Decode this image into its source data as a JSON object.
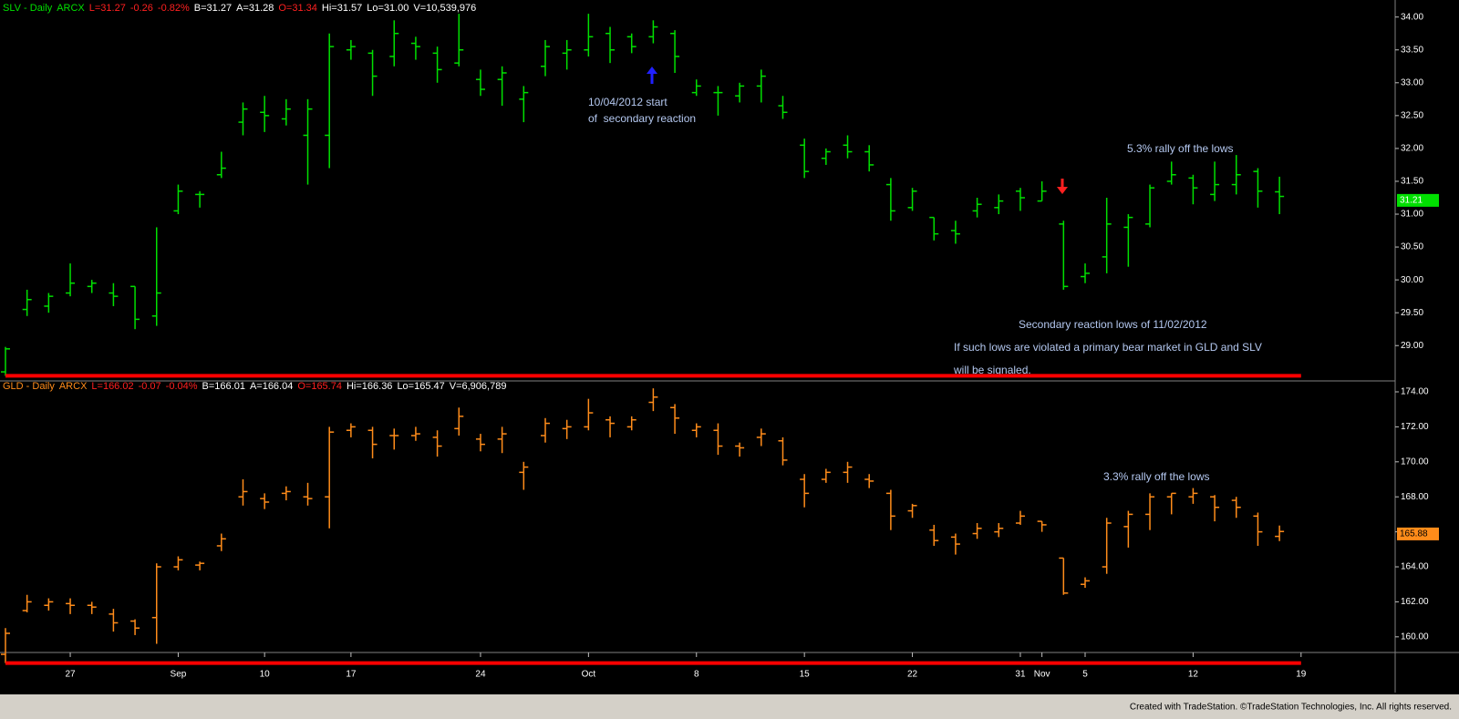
{
  "chart_data": [
    {
      "type": "ohlc",
      "color": "#00e000",
      "header": [
        {
          "text": "SLV - Daily",
          "color": "#00e000"
        },
        {
          "text": "ARCX",
          "color": "#00e000"
        },
        {
          "text": "L=31.27",
          "color": "#ff2020"
        },
        {
          "text": "-0.26",
          "color": "#ff2020"
        },
        {
          "text": "-0.82%",
          "color": "#ff2020"
        },
        {
          "text": "B=31.27",
          "color": "#ffffff"
        },
        {
          "text": "A=31.28",
          "color": "#ffffff"
        },
        {
          "text": "O=31.34",
          "color": "#ff2020"
        },
        {
          "text": "Hi=31.57",
          "color": "#ffffff"
        },
        {
          "text": "Lo=31.00",
          "color": "#ffffff"
        },
        {
          "text": "V=10,539,976",
          "color": "#ffffff"
        }
      ],
      "ylim": [
        28.49,
        34.19
      ],
      "yticks": [
        {
          "value": 29,
          "label": "29.00"
        },
        {
          "value": 29.5,
          "label": "29.50"
        },
        {
          "value": 30,
          "label": "30.00"
        },
        {
          "value": 30.5,
          "label": "30.50"
        },
        {
          "value": 31,
          "label": "31.00"
        },
        {
          "value": 31.5,
          "label": "31.50"
        },
        {
          "value": 32,
          "label": "32.00"
        },
        {
          "value": 32.5,
          "label": "32.50"
        },
        {
          "value": 33,
          "label": "33.00"
        },
        {
          "value": 33.5,
          "label": "33.50"
        },
        {
          "value": 34,
          "label": "34.00"
        }
      ],
      "price_tag": 31.21,
      "open": [
        28.6,
        29.55,
        29.6,
        29.8,
        29.9,
        29.8,
        29.9,
        29.45,
        31.05,
        31.3,
        31.6,
        32.4,
        32.55,
        32.45,
        32.2,
        32.2,
        33.5,
        33.45,
        33.4,
        33.6,
        33.45,
        33.3,
        33.05,
        33.05,
        32.75,
        33.25,
        33.45,
        33.5,
        33.75,
        33.7,
        33.7,
        33.75,
        32.85,
        32.85,
        32.8,
        32.95,
        32.65,
        32.05,
        31.85,
        32.05,
        31.95,
        31.45,
        31.1,
        30.95,
        30.75,
        31.05,
        31.1,
        31.35,
        31.2,
        30.85,
        30.05,
        30.35,
        30.8,
        30.85,
        31.5,
        31.55,
        31.3,
        31.45,
        31.65,
        31.34,
        null
      ],
      "high": [
        28.98,
        29.85,
        29.8,
        30.25,
        30.0,
        29.95,
        29.9,
        30.8,
        31.45,
        31.35,
        31.95,
        32.7,
        32.8,
        32.75,
        32.75,
        33.75,
        33.65,
        33.5,
        33.95,
        33.7,
        33.55,
        34.05,
        33.2,
        33.25,
        32.95,
        33.65,
        33.65,
        34.05,
        33.85,
        33.75,
        33.95,
        33.8,
        33.05,
        32.95,
        33.0,
        33.2,
        32.8,
        32.15,
        32.0,
        32.2,
        32.05,
        31.55,
        31.4,
        30.95,
        30.9,
        31.25,
        31.3,
        31.4,
        31.5,
        30.9,
        30.25,
        31.25,
        31.0,
        31.45,
        31.8,
        31.6,
        31.8,
        31.9,
        31.7,
        31.57,
        null
      ],
      "low": [
        28.54,
        29.45,
        29.5,
        29.75,
        29.8,
        29.6,
        29.25,
        29.3,
        31.0,
        31.1,
        31.55,
        32.2,
        32.25,
        32.35,
        31.45,
        31.7,
        33.35,
        32.8,
        33.25,
        33.35,
        33.0,
        33.25,
        32.8,
        32.65,
        32.4,
        33.1,
        33.2,
        33.4,
        33.3,
        33.45,
        33.6,
        33.15,
        32.8,
        32.5,
        32.7,
        32.7,
        32.45,
        31.55,
        31.75,
        31.85,
        31.65,
        30.9,
        31.05,
        30.6,
        30.55,
        30.95,
        31.0,
        31.05,
        31.2,
        29.85,
        29.95,
        30.1,
        30.2,
        30.8,
        31.45,
        31.15,
        31.2,
        31.3,
        31.1,
        31.0,
        null
      ],
      "close": [
        28.95,
        29.7,
        29.75,
        29.95,
        29.95,
        29.75,
        29.4,
        29.8,
        31.35,
        31.3,
        31.7,
        32.6,
        32.5,
        32.6,
        32.6,
        33.55,
        33.55,
        33.1,
        33.75,
        33.55,
        33.2,
        33.5,
        32.9,
        33.15,
        32.85,
        33.55,
        33.5,
        33.7,
        33.5,
        33.55,
        33.85,
        33.4,
        32.95,
        32.85,
        32.95,
        33.1,
        32.55,
        31.65,
        31.95,
        31.95,
        31.75,
        31.05,
        31.35,
        30.7,
        30.7,
        31.15,
        31.2,
        31.25,
        31.35,
        29.9,
        30.1,
        30.85,
        30.95,
        31.4,
        31.6,
        31.4,
        31.45,
        31.6,
        31.35,
        31.27,
        null
      ],
      "annotations": [
        "10/04/2012 start",
        "of  secondary reaction",
        "5.3% rally off the lows",
        "Secondary reaction lows of 11/02/2012",
        "If such lows are violated a primary bear market in GLD and SLV",
        "will be signaled."
      ]
    },
    {
      "type": "ohlc",
      "color": "#ff8c1a",
      "header": [
        {
          "text": "GLD - Daily",
          "color": "#ff8c1a"
        },
        {
          "text": "ARCX",
          "color": "#ff8c1a"
        },
        {
          "text": "L=166.02",
          "color": "#ff2020"
        },
        {
          "text": "-0.07",
          "color": "#ff2020"
        },
        {
          "text": "-0.04%",
          "color": "#ff2020"
        },
        {
          "text": "B=166.01",
          "color": "#ffffff"
        },
        {
          "text": "A=166.04",
          "color": "#ffffff"
        },
        {
          "text": "O=165.74",
          "color": "#ff2020"
        },
        {
          "text": "Hi=166.36",
          "color": "#ffffff"
        },
        {
          "text": "Lo=165.47",
          "color": "#ffffff"
        },
        {
          "text": "V=6,906,789",
          "color": "#ffffff"
        }
      ],
      "ylim": [
        159.21,
        174.52
      ],
      "yticks": [
        {
          "value": 160,
          "label": "160.00"
        },
        {
          "value": 162,
          "label": "162.00"
        },
        {
          "value": 164,
          "label": "164.00"
        },
        {
          "value": 166,
          "label": "166.00"
        },
        {
          "value": 168,
          "label": "168.00"
        },
        {
          "value": 170,
          "label": "170.00"
        },
        {
          "value": 172,
          "label": "172.00"
        },
        {
          "value": 174,
          "label": "174.00"
        }
      ],
      "price_tag": 165.88,
      "categories": [
        null,
        null,
        null,
        "27",
        null,
        null,
        null,
        null,
        "Sep",
        null,
        null,
        null,
        "10",
        null,
        null,
        null,
        "17",
        null,
        null,
        null,
        null,
        null,
        "24",
        null,
        null,
        null,
        null,
        "Oct",
        null,
        null,
        null,
        null,
        "8",
        null,
        null,
        null,
        null,
        "15",
        null,
        null,
        null,
        null,
        "22",
        null,
        null,
        null,
        null,
        "31",
        "Nov",
        null,
        "5",
        null,
        null,
        null,
        null,
        "12",
        null,
        null,
        null,
        null,
        "19"
      ],
      "open": [
        159,
        161.5,
        161.8,
        161.9,
        161.8,
        161.3,
        160.9,
        161.1,
        164.0,
        164.1,
        165.2,
        168,
        167.9,
        168.2,
        168,
        168,
        171.8,
        171.8,
        171.5,
        171.5,
        171.4,
        171.9,
        171.3,
        171.3,
        169.4,
        171.5,
        171.9,
        172,
        172.4,
        172.0,
        173.4,
        173.1,
        171.8,
        171.8,
        170.9,
        171.4,
        171.2,
        169.0,
        169.0,
        169.4,
        169.0,
        168.2,
        167.2,
        166.1,
        165.7,
        165.9,
        166.0,
        166.5,
        166.6,
        164.5,
        163.0,
        164.0,
        166.3,
        167.0,
        168.0,
        168.0,
        168.0,
        167.8,
        166.9,
        165.74,
        null
      ],
      "high": [
        160.5,
        162.4,
        162.2,
        162.2,
        162.0,
        161.6,
        161.0,
        164.2,
        164.6,
        164.3,
        165.9,
        169.0,
        168.2,
        168.6,
        168.8,
        172.0,
        172.2,
        172.0,
        171.9,
        172.0,
        171.8,
        173.1,
        171.6,
        172.0,
        170.0,
        172.5,
        172.4,
        173.6,
        172.6,
        172.6,
        174.2,
        173.3,
        172.2,
        172.2,
        171.1,
        171.9,
        171.4,
        169.3,
        169.6,
        170.0,
        169.3,
        168.4,
        167.6,
        166.4,
        165.9,
        166.5,
        166.5,
        167.2,
        166.6,
        164.5,
        163.4,
        166.8,
        167.2,
        168.2,
        168.2,
        168.5,
        168.1,
        168.0,
        167.1,
        166.36,
        null
      ],
      "low": [
        158.5,
        161.4,
        161.5,
        161.3,
        161.3,
        160.3,
        160.1,
        159.6,
        163.8,
        163.8,
        164.9,
        167.5,
        167.3,
        167.8,
        167.5,
        166.2,
        171.4,
        170.2,
        170.7,
        171.2,
        170.3,
        171.5,
        170.6,
        170.5,
        168.4,
        171.1,
        171.3,
        171.8,
        171.4,
        171.8,
        172.9,
        171.6,
        171.4,
        170.4,
        170.3,
        170.9,
        169.8,
        167.4,
        168.8,
        168.8,
        168.5,
        166.1,
        166.8,
        165.2,
        164.7,
        165.6,
        165.7,
        166.4,
        166.0,
        162.4,
        162.8,
        163.6,
        165.1,
        166.1,
        167.0,
        167.6,
        166.6,
        166.8,
        165.2,
        165.47,
        null
      ],
      "close": [
        160.2,
        162,
        162,
        161.8,
        161.7,
        160.8,
        160.5,
        164.0,
        164.4,
        164.2,
        165.6,
        168.3,
        167.7,
        168.3,
        167.9,
        171.7,
        172,
        171,
        171.5,
        171.6,
        170.9,
        172.6,
        171,
        171.6,
        169.7,
        172.2,
        172,
        172.8,
        172.2,
        172.4,
        173.7,
        172.5,
        172.0,
        170.9,
        170.8,
        171.6,
        170.1,
        168.2,
        169.4,
        169.7,
        168.9,
        166.9,
        167.5,
        165.5,
        165.3,
        166.2,
        166.2,
        166.9,
        166.4,
        162.5,
        163.2,
        166.5,
        167.0,
        168.0,
        168.2,
        168.2,
        167.4,
        167.4,
        166.0,
        166.02,
        null
      ],
      "annotations": [
        "3.3% rally off the lows"
      ]
    }
  ],
  "footer": "Created with TradeStation. ©TradeStation Technologies, Inc. All rights reserved."
}
